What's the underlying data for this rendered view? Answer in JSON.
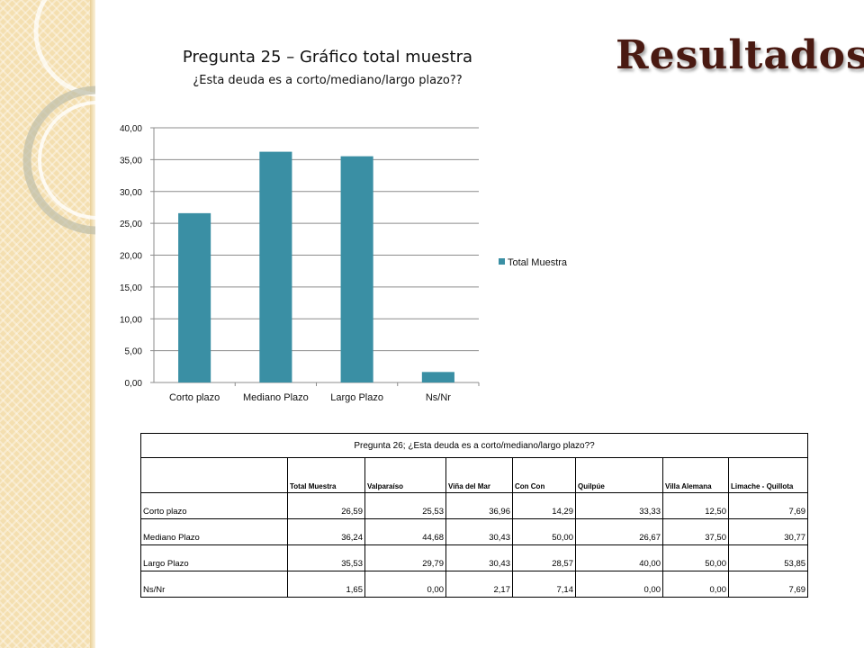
{
  "slide_title": "Resultados",
  "colors": {
    "bar": "#3a8fa4",
    "title": "#4a1a12",
    "panel": "#f4dfb0"
  },
  "chart_data": {
    "type": "bar",
    "title": "Pregunta 25 – Gráfico total muestra",
    "subtitle": "¿Esta deuda es a corto/mediano/largo plazo??",
    "categories": [
      "Corto plazo",
      "Mediano Plazo",
      "Largo Plazo",
      "Ns/Nr"
    ],
    "series": [
      {
        "name": "Total Muestra",
        "values": [
          26.59,
          36.24,
          35.53,
          1.65
        ]
      }
    ],
    "yticks": [
      "0,00",
      "5,00",
      "10,00",
      "15,00",
      "20,00",
      "25,00",
      "30,00",
      "35,00",
      "40,00"
    ],
    "ylim": [
      0,
      40
    ],
    "grid": true,
    "legend": "right"
  },
  "table": {
    "caption": "Pregunta 26; ¿Esta deuda es a corto/mediano/largo plazo??",
    "headers": [
      "",
      "Total Muestra",
      "Valparaíso",
      "Viña del Mar",
      "Con Con",
      "Quilpúe",
      "Villa Alemana",
      "Limache - Quillota"
    ],
    "rows": [
      [
        "Corto plazo",
        "26,59",
        "25,53",
        "36,96",
        "14,29",
        "33,33",
        "12,50",
        "7,69"
      ],
      [
        "Mediano Plazo",
        "36,24",
        "44,68",
        "30,43",
        "50,00",
        "26,67",
        "37,50",
        "30,77"
      ],
      [
        "Largo Plazo",
        "35,53",
        "29,79",
        "30,43",
        "28,57",
        "40,00",
        "50,00",
        "53,85"
      ],
      [
        "Ns/Nr",
        "1,65",
        "0,00",
        "2,17",
        "7,14",
        "0,00",
        "0,00",
        "7,69"
      ]
    ]
  }
}
